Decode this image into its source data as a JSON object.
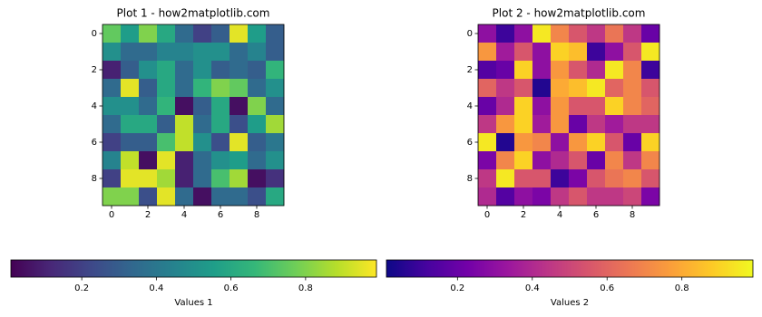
{
  "chart_data": [
    {
      "type": "heatmap",
      "title": "Plot 1 - how2matplotlib.com",
      "colormap": "viridis",
      "xlim": [
        -0.5,
        9.5
      ],
      "ylim": [
        9.5,
        -0.5
      ],
      "xticks": [
        0,
        2,
        4,
        6,
        8
      ],
      "yticks": [
        0,
        2,
        4,
        6,
        8
      ],
      "values": [
        [
          0.75,
          0.55,
          0.8,
          0.6,
          0.35,
          0.2,
          0.3,
          0.95,
          0.55,
          0.3
        ],
        [
          0.5,
          0.35,
          0.35,
          0.45,
          0.45,
          0.5,
          0.5,
          0.35,
          0.45,
          0.3
        ],
        [
          0.1,
          0.3,
          0.5,
          0.6,
          0.35,
          0.5,
          0.3,
          0.35,
          0.3,
          0.65
        ],
        [
          0.35,
          0.95,
          0.3,
          0.6,
          0.35,
          0.65,
          0.8,
          0.75,
          0.35,
          0.5
        ],
        [
          0.5,
          0.5,
          0.35,
          0.65,
          0.05,
          0.3,
          0.6,
          0.05,
          0.8,
          0.35
        ],
        [
          0.35,
          0.6,
          0.6,
          0.3,
          0.9,
          0.35,
          0.6,
          0.25,
          0.55,
          0.85
        ],
        [
          0.2,
          0.3,
          0.3,
          0.7,
          0.9,
          0.5,
          0.25,
          0.95,
          0.3,
          0.4
        ],
        [
          0.45,
          0.9,
          0.05,
          0.95,
          0.1,
          0.35,
          0.5,
          0.55,
          0.35,
          0.5
        ],
        [
          0.2,
          0.95,
          0.95,
          0.85,
          0.1,
          0.35,
          0.7,
          0.85,
          0.05,
          0.15
        ],
        [
          0.8,
          0.8,
          0.25,
          0.95,
          0.35,
          0.05,
          0.35,
          0.35,
          0.25,
          0.6
        ]
      ],
      "clim": [
        0.01,
        0.99
      ],
      "cticks": [
        0.2,
        0.4,
        0.6,
        0.8
      ],
      "clabel": "Values 1"
    },
    {
      "type": "heatmap",
      "title": "Plot 2 - how2matplotlib.com",
      "colormap": "plasma",
      "xlim": [
        -0.5,
        9.5
      ],
      "ylim": [
        9.5,
        -0.5
      ],
      "xticks": [
        0,
        2,
        4,
        6,
        8
      ],
      "yticks": [
        0,
        2,
        4,
        6,
        8
      ],
      "values": [
        [
          0.3,
          0.1,
          0.3,
          0.95,
          0.7,
          0.55,
          0.45,
          0.65,
          0.45,
          0.2
        ],
        [
          0.75,
          0.35,
          0.55,
          0.3,
          0.9,
          0.85,
          0.1,
          0.3,
          0.55,
          0.95
        ],
        [
          0.15,
          0.2,
          0.9,
          0.3,
          0.75,
          0.55,
          0.4,
          0.95,
          0.7,
          0.1
        ],
        [
          0.6,
          0.45,
          0.55,
          0.05,
          0.8,
          0.85,
          0.95,
          0.6,
          0.7,
          0.55
        ],
        [
          0.2,
          0.4,
          0.9,
          0.3,
          0.75,
          0.55,
          0.55,
          0.9,
          0.7,
          0.6
        ],
        [
          0.45,
          0.75,
          0.9,
          0.35,
          0.75,
          0.2,
          0.45,
          0.35,
          0.45,
          0.45
        ],
        [
          0.95,
          0.05,
          0.75,
          0.7,
          0.3,
          0.75,
          0.9,
          0.55,
          0.2,
          0.9
        ],
        [
          0.25,
          0.7,
          0.9,
          0.3,
          0.4,
          0.55,
          0.2,
          0.7,
          0.45,
          0.7
        ],
        [
          0.45,
          0.95,
          0.55,
          0.55,
          0.1,
          0.25,
          0.55,
          0.65,
          0.7,
          0.55
        ],
        [
          0.4,
          0.15,
          0.3,
          0.25,
          0.45,
          0.55,
          0.45,
          0.45,
          0.5,
          0.25
        ]
      ],
      "clim": [
        0.01,
        0.99
      ],
      "cticks": [
        0.2,
        0.4,
        0.6,
        0.8
      ],
      "clabel": "Values 2"
    }
  ]
}
